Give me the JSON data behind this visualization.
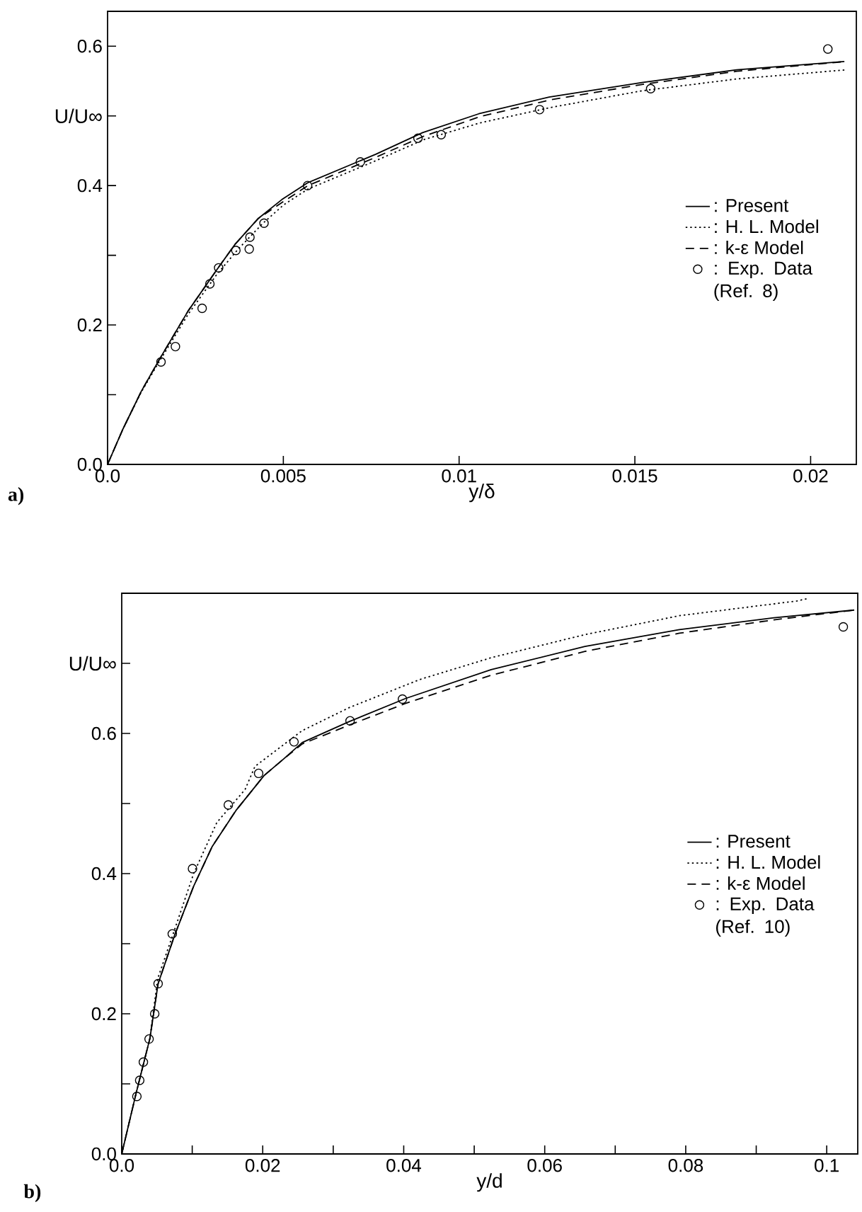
{
  "chart_data": [
    {
      "type": "line",
      "xlabel": "y/δ",
      "ylabel": "U/U∞",
      "annotations": [
        "a)"
      ],
      "xlim": [
        0,
        0.0213
      ],
      "ylim": [
        0,
        0.65
      ],
      "xticks": [
        {
          "value": 0,
          "label": "0.0"
        },
        0.005,
        0.01,
        0.015,
        0.02
      ],
      "yticks": [
        {
          "value": 0,
          "label": "0.0"
        },
        {
          "value": 0.1,
          "label": null
        },
        0.2,
        {
          "value": 0.3,
          "label": null
        },
        0.4,
        {
          "value": 0.5,
          "label": null
        },
        0.6
      ],
      "legend": "right",
      "grid": false,
      "series": [
        {
          "name": ": Present",
          "color": "#000000",
          "line_style": "solid",
          "marker": "none",
          "x": [
            0,
            0.00043,
            0.00096,
            0.00149,
            0.00229,
            0.00309,
            0.00363,
            0.00429,
            0.00496,
            0.00569,
            0.00763,
            0.00896,
            0.01056,
            0.01256,
            0.01523,
            0.01789,
            0.02096
          ],
          "values": [
            0,
            0.05,
            0.105,
            0.152,
            0.22,
            0.278,
            0.316,
            0.353,
            0.38,
            0.404,
            0.445,
            0.476,
            0.503,
            0.527,
            0.548,
            0.566,
            0.578
          ]
        },
        {
          "name": ": H. L. Model",
          "color": "#000000",
          "line_style": "dotted",
          "marker": "none",
          "x": [
            0,
            0.00043,
            0.00096,
            0.0015,
            0.0023,
            0.0031,
            0.0037,
            0.0044,
            0.005,
            0.0057,
            0.0076,
            0.009,
            0.0106,
            0.0126,
            0.0152,
            0.0179,
            0.021
          ],
          "values": [
            0,
            0.05,
            0.104,
            0.15,
            0.216,
            0.272,
            0.308,
            0.345,
            0.372,
            0.395,
            0.435,
            0.466,
            0.49,
            0.512,
            0.536,
            0.553,
            0.566
          ]
        },
        {
          "name": ": k-ε Model",
          "color": "#000000",
          "line_style": "dashed",
          "marker": "none",
          "x": [
            0,
            0.00043,
            0.00096,
            0.00149,
            0.00229,
            0.00309,
            0.00363,
            0.00429,
            0.005,
            0.0057,
            0.0076,
            0.009,
            0.0106,
            0.0126,
            0.0152,
            0.0179,
            0.021
          ],
          "values": [
            0,
            0.05,
            0.105,
            0.152,
            0.22,
            0.278,
            0.316,
            0.353,
            0.377,
            0.4,
            0.44,
            0.471,
            0.499,
            0.523,
            0.545,
            0.564,
            0.578
          ]
        },
        {
          "name": ": Exp. Data (Ref. 8)",
          "type": "scatter",
          "color": "#000000",
          "marker": "circle",
          "x": [
            0.00152,
            0.00193,
            0.00269,
            0.00291,
            0.00316,
            0.00365,
            0.00403,
            0.00405,
            0.00445,
            0.00569,
            0.00719,
            0.00883,
            0.00949,
            0.01229,
            0.01545,
            0.02049
          ],
          "values": [
            0.147,
            0.169,
            0.224,
            0.259,
            0.282,
            0.307,
            0.309,
            0.326,
            0.346,
            0.4,
            0.434,
            0.468,
            0.473,
            0.509,
            0.539,
            0.596
          ]
        }
      ]
    },
    {
      "type": "line",
      "xlabel": "y/d",
      "ylabel": "U/U∞",
      "annotations": [
        "b)"
      ],
      "xlim": [
        0,
        0.1044
      ],
      "ylim": [
        0,
        0.8
      ],
      "xticks": [
        {
          "value": 0,
          "label": "0.0"
        },
        {
          "value": 0.01,
          "label": null
        },
        0.02,
        {
          "value": 0.03,
          "label": null
        },
        0.04,
        {
          "value": 0.05,
          "label": null
        },
        0.06,
        {
          "value": 0.07,
          "label": null
        },
        0.08,
        {
          "value": 0.09,
          "label": null
        },
        0.1
      ],
      "yticks": [
        {
          "value": 0,
          "label": "0.0"
        },
        {
          "value": 0.1,
          "label": null
        },
        0.2,
        {
          "value": 0.3,
          "label": null
        },
        0.4,
        {
          "value": 0.5,
          "label": null
        },
        0.6,
        {
          "value": 0.7,
          "label": null
        }
      ],
      "legend": "right",
      "grid": false,
      "series": [
        {
          "name": ": Present",
          "color": "#000000",
          "line_style": "solid",
          "marker": "none",
          "x": [
            0,
            0.002,
            0.004,
            0.00516,
            0.0075,
            0.0102,
            0.01285,
            0.0162,
            0.0202,
            0.0229,
            0.0256,
            0.0323,
            0.0403,
            0.0524,
            0.0657,
            0.0791,
            0.0925,
            0.1039
          ],
          "values": [
            0,
            0.085,
            0.165,
            0.243,
            0.312,
            0.382,
            0.439,
            0.49,
            0.54,
            0.563,
            0.587,
            0.617,
            0.65,
            0.691,
            0.724,
            0.748,
            0.765,
            0.776
          ]
        },
        {
          "name": ": H. L. Model",
          "color": "#000000",
          "line_style": "dotted",
          "marker": "none",
          "x": [
            0,
            0.002,
            0.004,
            0.0051,
            0.0075,
            0.0102,
            0.0135,
            0.0175,
            0.0189,
            0.0256,
            0.0323,
            0.0423,
            0.0524,
            0.0657,
            0.0791,
            0.0958,
            0.0975
          ],
          "values": [
            0,
            0.085,
            0.165,
            0.25,
            0.32,
            0.4,
            0.473,
            0.52,
            0.553,
            0.604,
            0.637,
            0.677,
            0.708,
            0.741,
            0.768,
            0.789,
            0.793
          ]
        },
        {
          "name": ": k-ε Model",
          "color": "#000000",
          "line_style": "dashed",
          "marker": "none",
          "x": [
            0,
            0.002,
            0.004,
            0.00516,
            0.0075,
            0.0102,
            0.01285,
            0.0162,
            0.0202,
            0.0229,
            0.0256,
            0.0323,
            0.0403,
            0.0524,
            0.0657,
            0.0791,
            0.0925,
            0.1039
          ],
          "values": [
            0,
            0.085,
            0.165,
            0.243,
            0.312,
            0.382,
            0.439,
            0.49,
            0.54,
            0.563,
            0.585,
            0.612,
            0.643,
            0.683,
            0.717,
            0.743,
            0.762,
            0.776
          ]
        },
        {
          "name": ": Exp. Data (Ref. 10)",
          "type": "scatter",
          "color": "#000000",
          "marker": "circle",
          "x": [
            0.00215,
            0.00255,
            0.00307,
            0.00388,
            0.00468,
            0.00516,
            0.00717,
            0.01004,
            0.01512,
            0.01942,
            0.02444,
            0.03239,
            0.03982,
            0.10235
          ],
          "values": [
            0.082,
            0.105,
            0.131,
            0.164,
            0.2,
            0.243,
            0.314,
            0.407,
            0.498,
            0.543,
            0.588,
            0.618,
            0.649,
            0.752
          ]
        }
      ]
    }
  ]
}
